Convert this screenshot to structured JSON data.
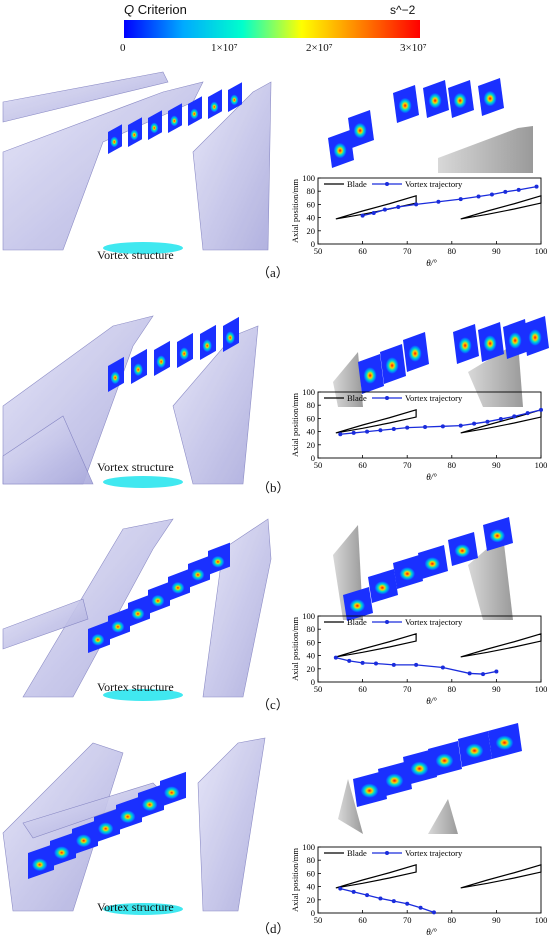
{
  "colorbar": {
    "title_symbol": "Q",
    "title_text": " Criterion",
    "unit": "s^−2",
    "ticks": [
      "0",
      "1×10⁷",
      "2×10⁷",
      "3×10⁷"
    ],
    "colors": [
      "#0000ff",
      "#00aaff",
      "#00ffcc",
      "#ffff00",
      "#ff8000",
      "#ff0000"
    ]
  },
  "panels": [
    {
      "label": "（a）",
      "caption": "Vortex structure",
      "chart_data": {
        "type": "line",
        "xlabel": "θ/°",
        "ylabel": "Axial position/mm",
        "xlim": [
          50,
          100
        ],
        "ylim": [
          0,
          100
        ],
        "xticks": [
          50,
          60,
          70,
          80,
          90,
          100
        ],
        "yticks": [
          0,
          20,
          40,
          60,
          80,
          100
        ],
        "legend": [
          "Blade",
          "Vortex trajectory"
        ],
        "series": [
          {
            "name": "Vortex trajectory",
            "x": [
              60,
              62.5,
              65,
              68,
              72,
              77,
              82,
              86,
              89,
              92,
              95,
              99
            ],
            "y": [
              43,
              47,
              52,
              56,
              60,
              64,
              68,
              72,
              75,
              79,
              82,
              87
            ]
          }
        ],
        "blades": [
          {
            "x": [
              54,
              60,
              66,
              72
            ],
            "upper": [
              38,
              50,
              61,
              73
            ],
            "lower": [
              38,
              45,
              53,
              62
            ]
          },
          {
            "x": [
              82,
              88,
              94,
              100
            ],
            "upper": [
              38,
              50,
              61,
              73
            ],
            "lower": [
              38,
              45,
              53,
              62
            ]
          }
        ]
      }
    },
    {
      "label": "（b）",
      "caption": "Vortex structure",
      "chart_data": {
        "type": "line",
        "xlabel": "θ/°",
        "ylabel": "Axial position/mm",
        "xlim": [
          50,
          100
        ],
        "ylim": [
          0,
          100
        ],
        "xticks": [
          50,
          60,
          70,
          80,
          90,
          100
        ],
        "yticks": [
          0,
          20,
          40,
          60,
          80,
          100
        ],
        "legend": [
          "Blade",
          "Vortex trajectory"
        ],
        "series": [
          {
            "name": "Vortex trajectory",
            "x": [
              55,
              58,
              61,
              64,
              67,
              70,
              74,
              78,
              82,
              85,
              88,
              91,
              94,
              97,
              100
            ],
            "y": [
              36,
              38,
              40,
              42,
              44,
              46,
              47,
              48,
              49,
              52,
              55,
              59,
              63,
              68,
              73
            ]
          }
        ],
        "blades": [
          {
            "x": [
              54,
              60,
              66,
              72
            ],
            "upper": [
              38,
              50,
              61,
              73
            ],
            "lower": [
              38,
              45,
              53,
              62
            ]
          },
          {
            "x": [
              82,
              88,
              94,
              100
            ],
            "upper": [
              38,
              50,
              61,
              73
            ],
            "lower": [
              38,
              45,
              53,
              62
            ]
          }
        ]
      }
    },
    {
      "label": "（c）",
      "caption": "Vortex structure",
      "chart_data": {
        "type": "line",
        "xlabel": "θ/°",
        "ylabel": "Axial position/mm",
        "xlim": [
          50,
          100
        ],
        "ylim": [
          0,
          100
        ],
        "xticks": [
          50,
          60,
          70,
          80,
          90,
          100
        ],
        "yticks": [
          0,
          20,
          40,
          60,
          80,
          100
        ],
        "legend": [
          "Blade",
          "Vortex trajectory"
        ],
        "series": [
          {
            "name": "Vortex trajectory",
            "x": [
              54,
              57,
              60,
              63,
              67,
              72,
              78,
              84,
              87,
              90
            ],
            "y": [
              37,
              32,
              29,
              28,
              26,
              26,
              22,
              13,
              12,
              16
            ]
          }
        ],
        "blades": [
          {
            "x": [
              54,
              60,
              66,
              72
            ],
            "upper": [
              38,
              50,
              61,
              73
            ],
            "lower": [
              38,
              45,
              53,
              62
            ]
          },
          {
            "x": [
              82,
              88,
              94,
              100
            ],
            "upper": [
              38,
              50,
              61,
              73
            ],
            "lower": [
              38,
              45,
              53,
              62
            ]
          }
        ]
      }
    },
    {
      "label": "（d）",
      "caption": "Vortex structure",
      "chart_data": {
        "type": "line",
        "xlabel": "θ/°",
        "ylabel": "Axial position/mm",
        "xlim": [
          50,
          100
        ],
        "ylim": [
          0,
          100
        ],
        "xticks": [
          50,
          60,
          70,
          80,
          90,
          100
        ],
        "yticks": [
          0,
          20,
          40,
          60,
          80,
          100
        ],
        "legend": [
          "Blade",
          "Vortex trajectory"
        ],
        "series": [
          {
            "name": "Vortex trajectory",
            "x": [
              55,
              58,
              61,
              64,
              67,
              70,
              73,
              76
            ],
            "y": [
              37,
              32,
              27,
              22,
              18,
              14,
              8,
              1
            ]
          }
        ],
        "blades": [
          {
            "x": [
              54,
              60,
              66,
              72
            ],
            "upper": [
              38,
              50,
              61,
              73
            ],
            "lower": [
              38,
              45,
              53,
              62
            ]
          },
          {
            "x": [
              82,
              88,
              94,
              100
            ],
            "upper": [
              38,
              50,
              61,
              73
            ],
            "lower": [
              38,
              45,
              53,
              62
            ]
          }
        ]
      }
    }
  ]
}
